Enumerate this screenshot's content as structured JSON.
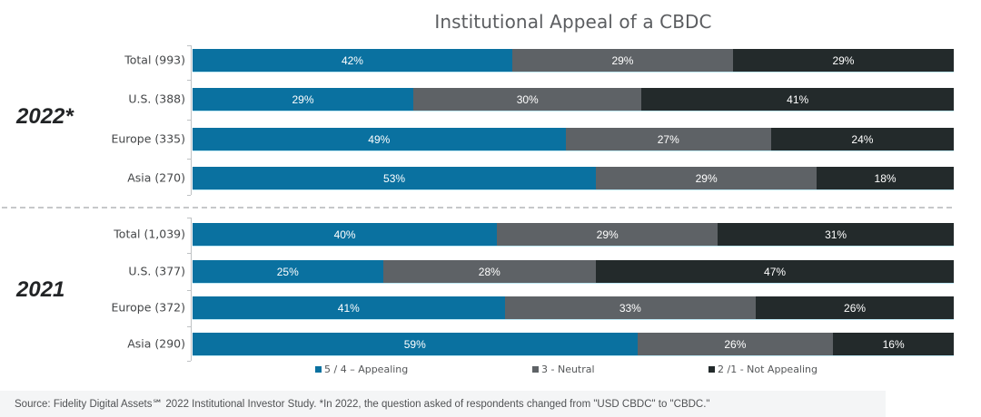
{
  "chart_data": {
    "type": "bar",
    "orientation": "horizontal",
    "stacked": true,
    "percent_stacked": true,
    "title": "Institutional Appeal of a CBDC",
    "xlabel": "",
    "ylabel": "",
    "xlim": [
      0,
      100
    ],
    "grid": false,
    "legend_position": "bottom",
    "series_names": [
      "5 / 4 – Appealing",
      "3 - Neutral",
      "2 /1 - Not Appealing"
    ],
    "colors": [
      "#0a71a0",
      "#5e6266",
      "#232a2b"
    ],
    "groups": [
      {
        "label": "2022*",
        "categories": [
          "Total (993)",
          "U.S. (388)",
          "Europe (335)",
          "Asia (270)"
        ],
        "series": [
          {
            "name": "5 / 4 – Appealing",
            "values": [
              42,
              29,
              49,
              53
            ]
          },
          {
            "name": "3 - Neutral",
            "values": [
              29,
              30,
              27,
              29
            ]
          },
          {
            "name": "2 /1 - Not Appealing",
            "values": [
              29,
              41,
              24,
              18
            ]
          }
        ]
      },
      {
        "label": "2021",
        "categories": [
          "Total (1,039)",
          "U.S. (377)",
          "Europe (372)",
          "Asia (290)"
        ],
        "series": [
          {
            "name": "5 / 4 – Appealing",
            "values": [
              40,
              25,
              41,
              59
            ]
          },
          {
            "name": "3 - Neutral",
            "values": [
              29,
              28,
              33,
              26
            ]
          },
          {
            "name": "2 /1 - Not Appealing",
            "values": [
              31,
              47,
              26,
              16
            ]
          }
        ]
      }
    ]
  },
  "legend": [
    {
      "label": "5 / 4 – Appealing",
      "color": "#0a71a0"
    },
    {
      "label": "3 - Neutral",
      "color": "#5e6266"
    },
    {
      "label": "2 /1 - Not Appealing",
      "color": "#232a2b"
    }
  ],
  "footer": {
    "source": "Source: Fidelity Digital Assets℠ 2022 Institutional Investor Study. *In 2022, the question asked of respondents changed from \"USD CBDC\" to \"CBDC.\""
  }
}
